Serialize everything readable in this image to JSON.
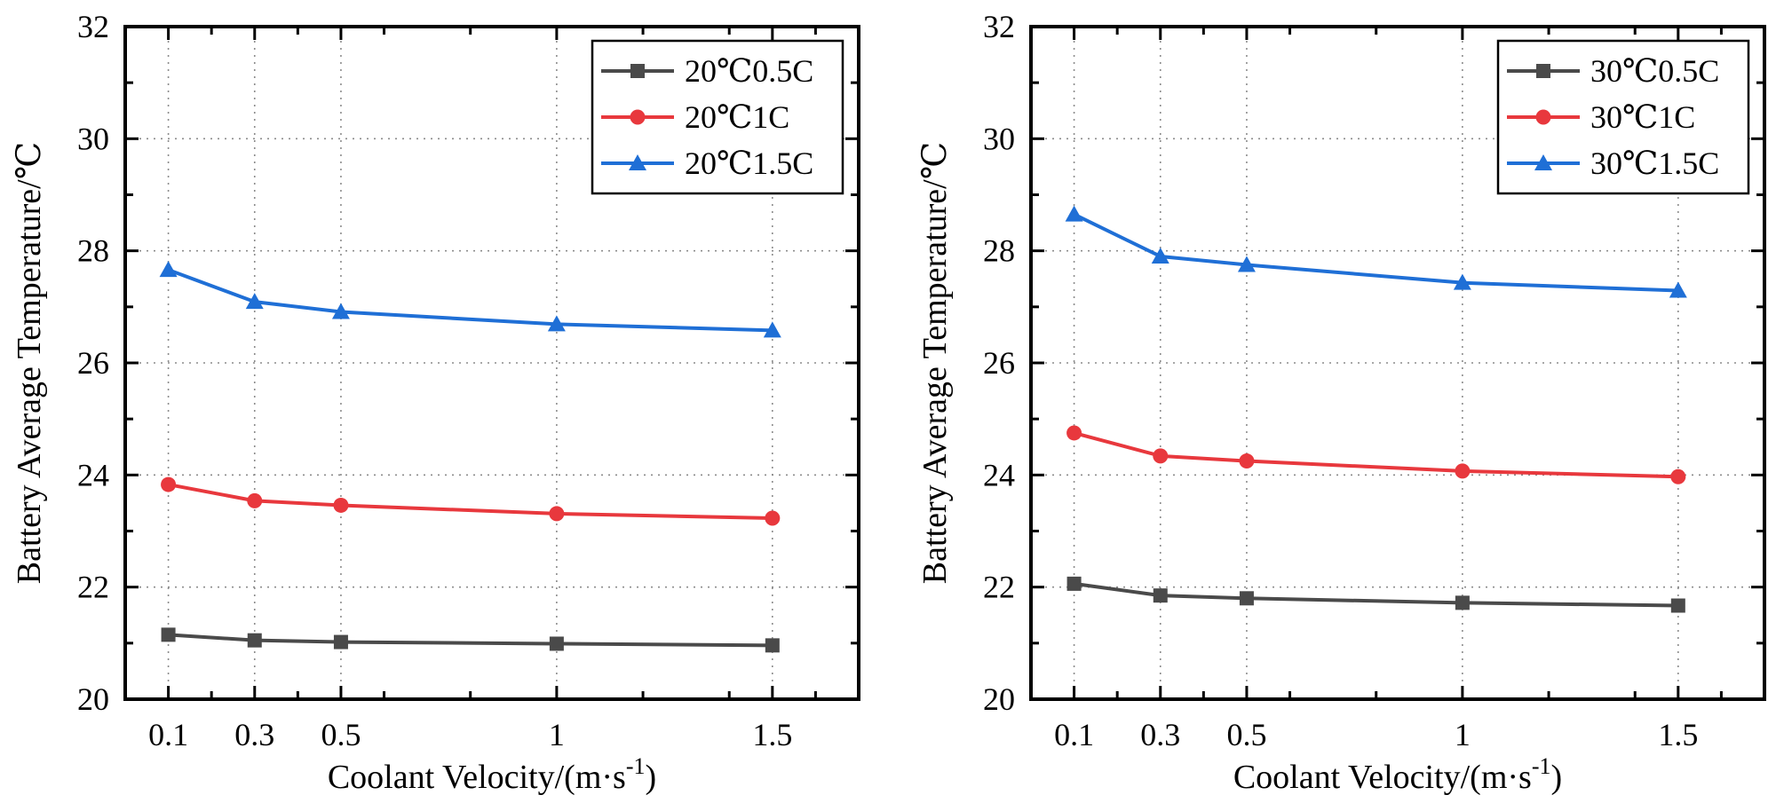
{
  "chart_data": [
    {
      "type": "line",
      "title": "",
      "xlabel": "Coolant Velocity/(m·s",
      "xlabel_sup": "-1",
      "xlabel_close": ")",
      "ylabel": "Battery Average Temperature/℃",
      "x": [
        0.1,
        0.3,
        0.5,
        1,
        1.5
      ],
      "xticks": [
        0.1,
        0.3,
        0.5,
        1,
        1.5
      ],
      "xtick_labels": [
        "0.1",
        "0.3",
        "0.5",
        "1",
        "1.5"
      ],
      "xlim": [
        0,
        1.7
      ],
      "ylim": [
        20,
        32
      ],
      "yticks": [
        20,
        22,
        24,
        26,
        28,
        30,
        32
      ],
      "ytick_labels": [
        "20",
        "22",
        "24",
        "26",
        "28",
        "30",
        "32"
      ],
      "grid": true,
      "legend_position": "top-right",
      "series": [
        {
          "name": "20℃0.5C",
          "color": "#4a4a4a",
          "marker": "square",
          "values": [
            21.15,
            21.05,
            21.02,
            20.99,
            20.96
          ]
        },
        {
          "name": "20℃1C",
          "color": "#e8383d",
          "marker": "circle",
          "values": [
            23.83,
            23.54,
            23.46,
            23.31,
            23.23
          ]
        },
        {
          "name": "20℃1.5C",
          "color": "#1f6fd6",
          "marker": "triangle",
          "values": [
            27.66,
            27.09,
            26.91,
            26.69,
            26.58
          ]
        }
      ]
    },
    {
      "type": "line",
      "title": "",
      "xlabel": "Coolant Velocity/(m·s",
      "xlabel_sup": "-1",
      "xlabel_close": ")",
      "ylabel": "Battery Average Temperature/℃",
      "x": [
        0.1,
        0.3,
        0.5,
        1,
        1.5
      ],
      "xticks": [
        0.1,
        0.3,
        0.5,
        1,
        1.5
      ],
      "xtick_labels": [
        "0.1",
        "0.3",
        "0.5",
        "1",
        "1.5"
      ],
      "xlim": [
        0,
        1.7
      ],
      "ylim": [
        20,
        32
      ],
      "yticks": [
        20,
        22,
        24,
        26,
        28,
        30,
        32
      ],
      "ytick_labels": [
        "20",
        "22",
        "24",
        "26",
        "28",
        "30",
        "32"
      ],
      "grid": true,
      "legend_position": "top-right",
      "series": [
        {
          "name": "30℃0.5C",
          "color": "#4a4a4a",
          "marker": "square",
          "values": [
            22.06,
            21.85,
            21.8,
            21.72,
            21.67
          ]
        },
        {
          "name": "30℃1C",
          "color": "#e8383d",
          "marker": "circle",
          "values": [
            24.75,
            24.34,
            24.25,
            24.07,
            23.97
          ]
        },
        {
          "name": "30℃1.5C",
          "color": "#1f6fd6",
          "marker": "triangle",
          "values": [
            28.65,
            27.9,
            27.75,
            27.43,
            27.29
          ]
        }
      ]
    }
  ]
}
